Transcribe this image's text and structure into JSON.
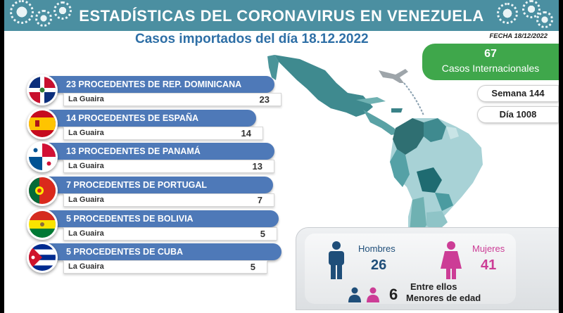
{
  "header": {
    "title": "ESTADÍSTICAS DEL CORONAVIRUS EN VENEZUELA"
  },
  "subtitle": "Casos importados del día 18.12.2022",
  "fecha": "FECHA 18/12/2022",
  "international": {
    "count": "67",
    "label": "Casos Internacionales"
  },
  "semana": "Semana 144",
  "dia": "Día 1008",
  "rows": [
    {
      "label": "23 PROCEDENTES DE REP. DOMINICANA",
      "place": "La Guaira",
      "count": "23",
      "flag": "dominican-republic-flag-icon"
    },
    {
      "label": "14 PROCEDENTES DE ESPAÑA",
      "place": "La Guaira",
      "count": "14",
      "flag": "spain-flag-icon"
    },
    {
      "label": "13 PROCEDENTES DE PANAMÁ",
      "place": "La Guaira",
      "count": "13",
      "flag": "panama-flag-icon"
    },
    {
      "label": "7 PROCEDENTES DE PORTUGAL",
      "place": "La Guaira",
      "count": "7",
      "flag": "portugal-flag-icon"
    },
    {
      "label": "5 PROCEDENTES DE BOLIVIA",
      "place": "La Guaira",
      "count": "5",
      "flag": "bolivia-flag-icon"
    },
    {
      "label": "5 PROCEDENTES DE CUBA",
      "place": "La Guaira",
      "count": "5",
      "flag": "cuba-flag-icon"
    }
  ],
  "gender": {
    "men_label": "Hombres",
    "men_count": "26",
    "women_label": "Mujeres",
    "women_count": "41",
    "minors_count": "6",
    "minors_line1": "Entre ellos",
    "minors_line2": "Menores de edad"
  },
  "colors": {
    "header": "#4b8fa1",
    "bar": "#4e79b8",
    "green": "#3fa74b",
    "men": "#1f4e79",
    "women": "#cc3d96"
  }
}
